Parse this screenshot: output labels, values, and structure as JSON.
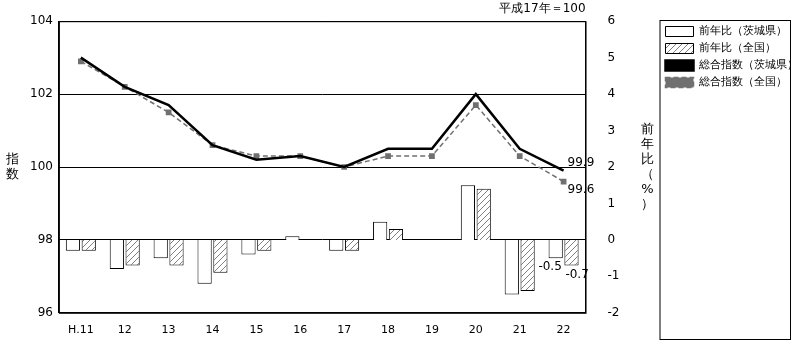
{
  "chart_data": {
    "type": "bar",
    "subtitle": "平成17年＝100",
    "categories": [
      "H.11",
      "12",
      "13",
      "14",
      "15",
      "16",
      "17",
      "18",
      "19",
      "20",
      "21",
      "22"
    ],
    "ylabel": "指数",
    "y2label": "前年比（%）",
    "ylim": [
      96,
      104
    ],
    "yticks": [
      96,
      98,
      100,
      102,
      104
    ],
    "y2lim": [
      -2,
      6
    ],
    "y2ticks": [
      -2,
      -1,
      0,
      1,
      2,
      3,
      4,
      5,
      6
    ],
    "grid": true,
    "legend": "upper right",
    "series": [
      {
        "name": "前年比（茨城県）",
        "type": "bar",
        "axis": "y2",
        "color": "#ffffff",
        "values": [
          -0.3,
          -0.8,
          -0.5,
          -1.2,
          -0.4,
          0.1,
          -0.3,
          0.5,
          0.0,
          1.5,
          -1.5,
          -0.5
        ],
        "value_labels": [
          null,
          null,
          null,
          null,
          null,
          null,
          null,
          null,
          null,
          null,
          null,
          "-0.5"
        ]
      },
      {
        "name": "前年比（全国）",
        "type": "bar",
        "axis": "y2",
        "color": "#808080",
        "values": [
          -0.3,
          -0.7,
          -0.7,
          -0.9,
          -0.3,
          0.0,
          -0.3,
          0.3,
          0.0,
          1.4,
          -1.4,
          -0.7
        ],
        "value_labels": [
          null,
          null,
          null,
          null,
          null,
          null,
          null,
          null,
          null,
          null,
          null,
          "-0.7"
        ]
      },
      {
        "name": "総合指数（茨城県）",
        "type": "line",
        "color": "#000000",
        "marker": "none",
        "line_style": "solid",
        "values": [
          103.0,
          102.2,
          101.7,
          100.6,
          100.2,
          100.3,
          100.0,
          100.5,
          100.5,
          102.0,
          100.5,
          99.9
        ],
        "value_labels": [
          null,
          null,
          null,
          null,
          null,
          null,
          null,
          null,
          null,
          null,
          null,
          "99.9"
        ]
      },
      {
        "name": "総合指数（全国）",
        "type": "line",
        "color": "#707070",
        "marker": "square",
        "line_style": "dashed",
        "values": [
          102.9,
          102.2,
          101.5,
          100.6,
          100.3,
          100.3,
          100.0,
          100.3,
          100.3,
          101.7,
          100.3,
          99.6
        ],
        "value_labels": [
          null,
          null,
          null,
          null,
          null,
          null,
          null,
          null,
          null,
          null,
          null,
          "99.6"
        ]
      }
    ]
  }
}
